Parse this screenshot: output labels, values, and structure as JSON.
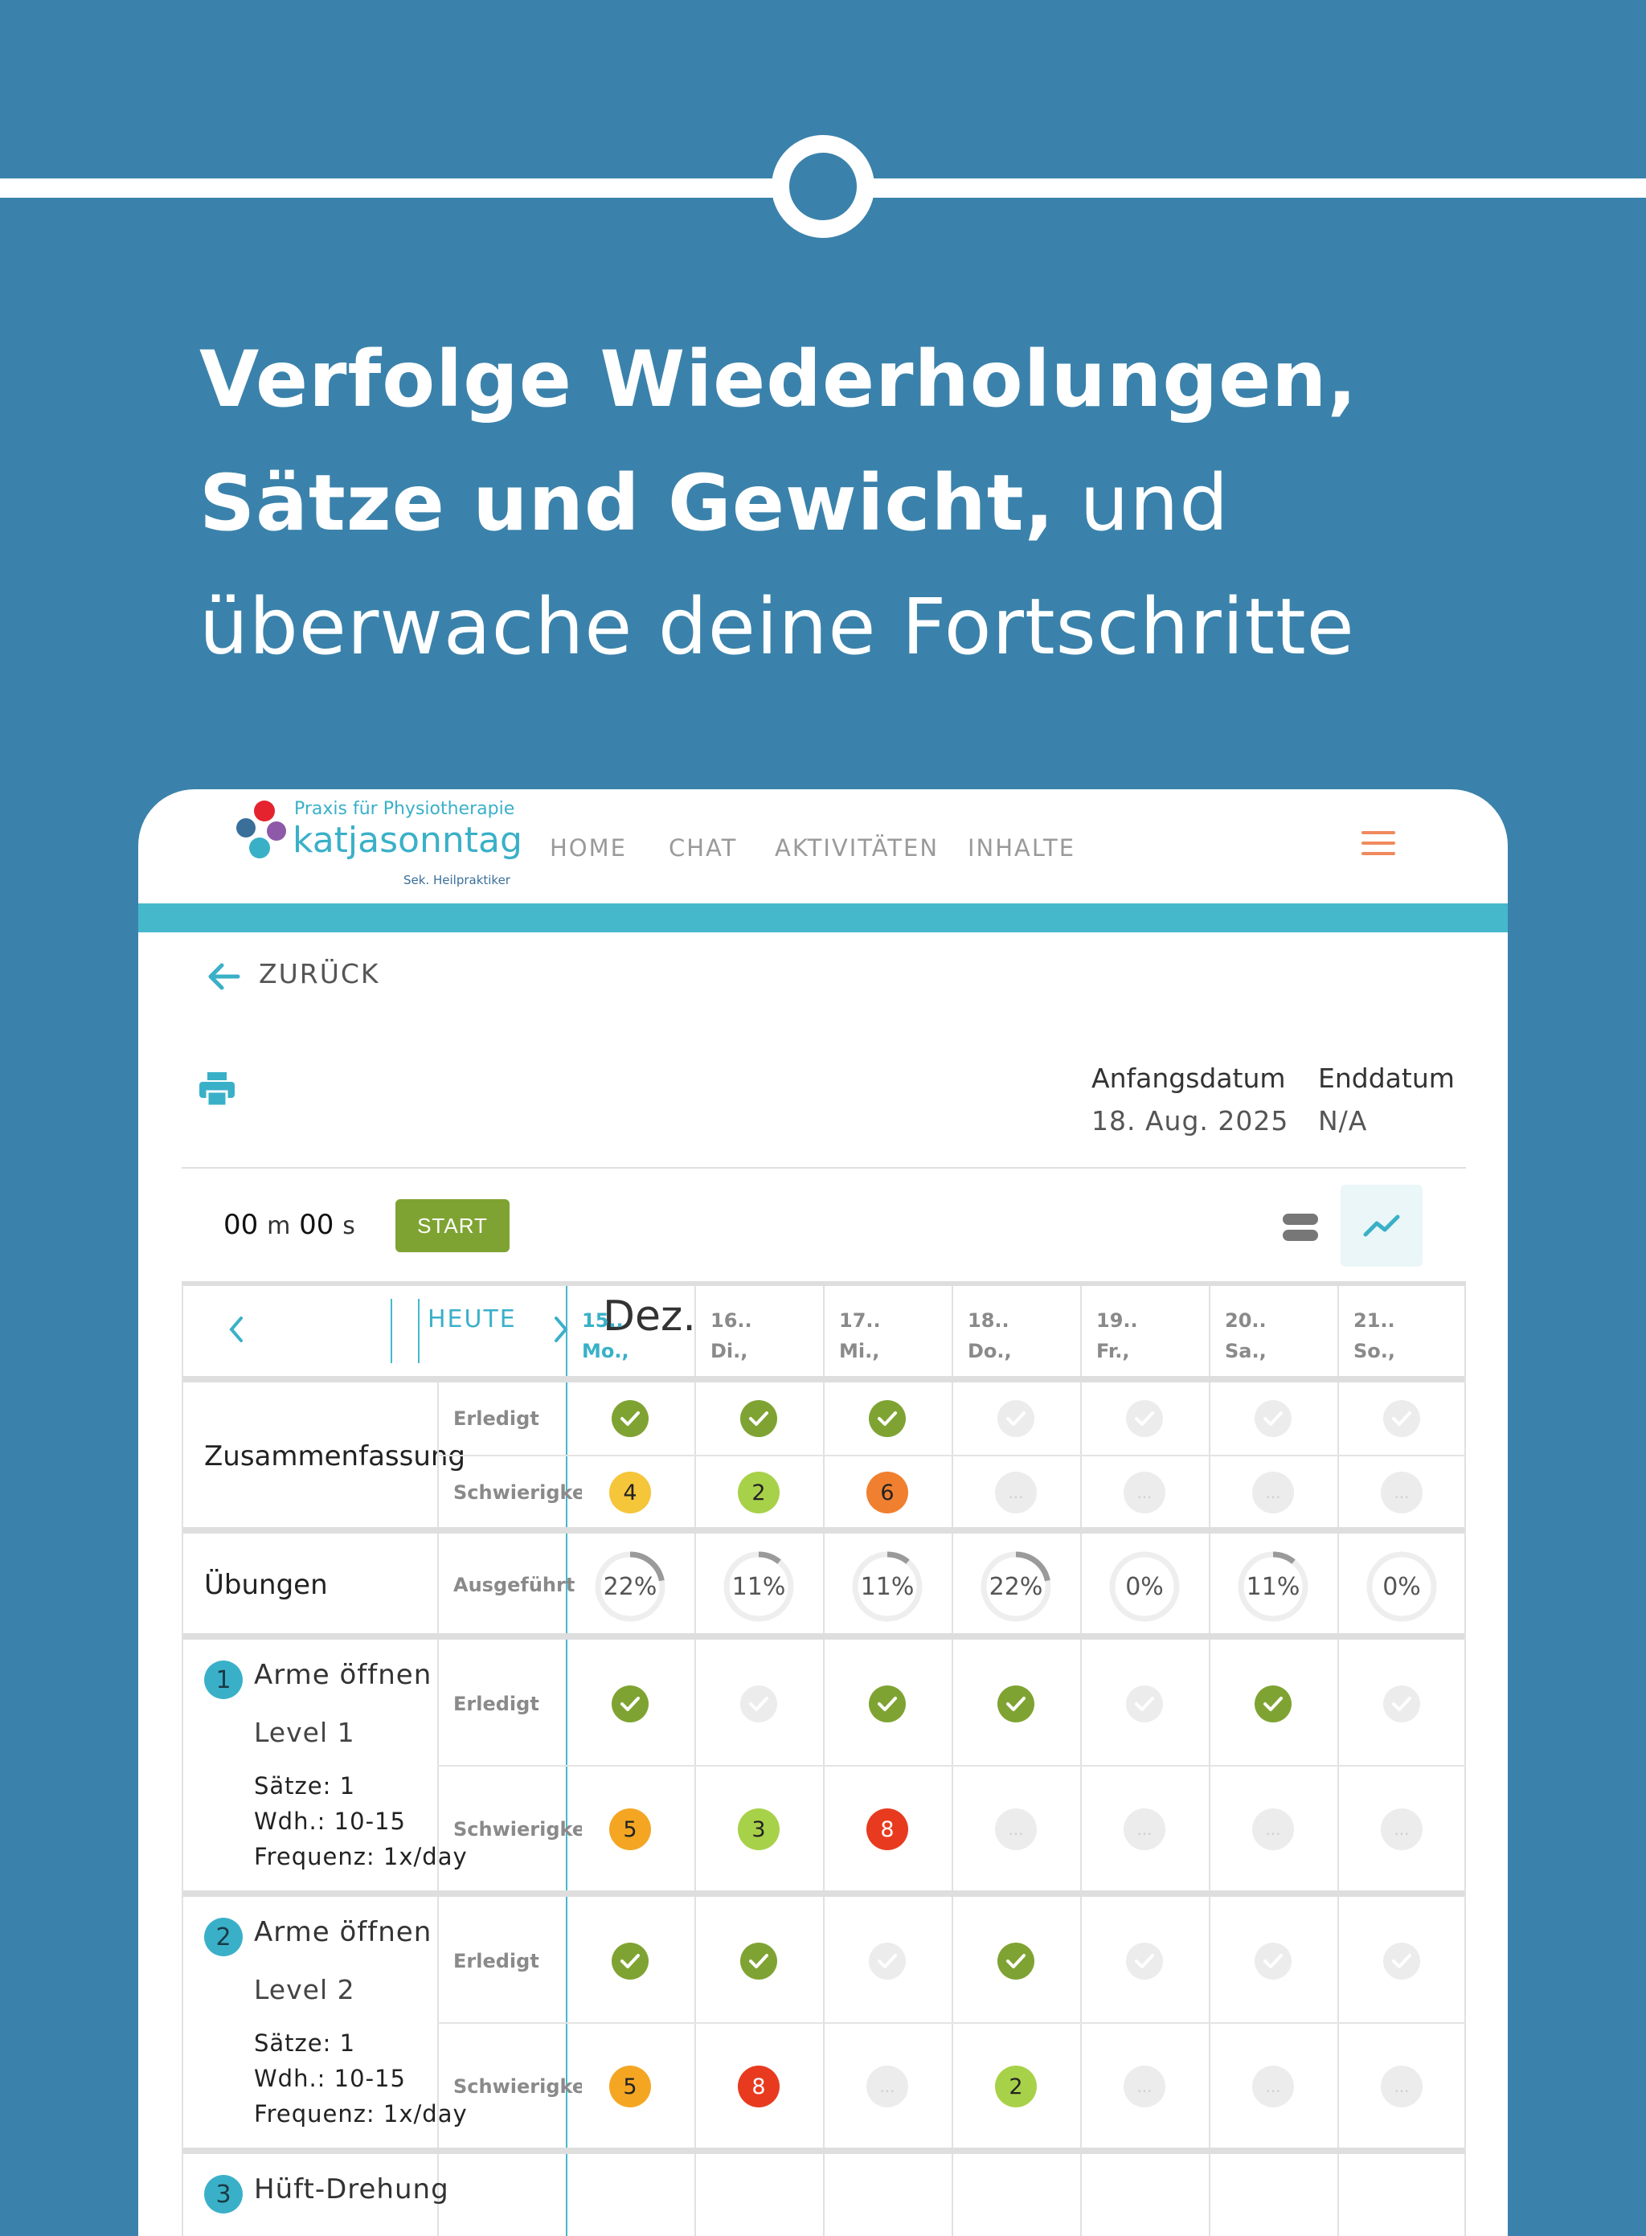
{
  "hero": {
    "line1_bold": "Verfolge Wiederholungen,",
    "line2_bold": "Sätze und Gewicht,",
    "line2_rest": " und",
    "line3": "überwache deine Fortschritte"
  },
  "brand": {
    "subtitle": "Praxis für Physiotherapie",
    "name": "katjasonntag",
    "tagline": "Sek. Heilpraktiker"
  },
  "nav": {
    "home": "HOME",
    "chat": "CHAT",
    "activities": "AKTIVITÄTEN",
    "content": "INHALTE"
  },
  "back_label": "ZURÜCK",
  "dates": {
    "start_label": "Anfangsdatum",
    "start_value": "18. Aug. 2025",
    "end_label": "Enddatum",
    "end_value": "N/A"
  },
  "timer": {
    "minutes": "00",
    "min_unit": "m",
    "seconds": "00",
    "sec_unit": "s",
    "start_label": "START"
  },
  "calendar": {
    "today_label": "HEUTE",
    "month": "Dez.",
    "days": [
      {
        "date": "15..",
        "weekday": "Mo.,"
      },
      {
        "date": "16..",
        "weekday": "Di.,"
      },
      {
        "date": "17..",
        "weekday": "Mi.,"
      },
      {
        "date": "18..",
        "weekday": "Do.,"
      },
      {
        "date": "19..",
        "weekday": "Fr.,"
      },
      {
        "date": "20..",
        "weekday": "Sa.,"
      },
      {
        "date": "21..",
        "weekday": "So.,"
      }
    ]
  },
  "labels": {
    "done": "Erledigt",
    "difficulty": "Schwierigkeit",
    "executed": "Ausgeführt",
    "empty_marker": "..."
  },
  "summary": {
    "title": "Zusammenfassung",
    "done": [
      true,
      true,
      true,
      false,
      false,
      false,
      false
    ],
    "difficulty": [
      4,
      2,
      6,
      null,
      null,
      null,
      null
    ]
  },
  "exercises_overview": {
    "title": "Übungen",
    "percent_labels": [
      "22%",
      "11%",
      "11%",
      "22%",
      "0%",
      "11%",
      "0%"
    ],
    "percent_values": [
      22,
      11,
      11,
      22,
      0,
      11,
      0
    ]
  },
  "exercises": [
    {
      "number": "1",
      "name": "Arme öffnen",
      "level": "Level 1",
      "sets": "Sätze: 1",
      "reps": "Wdh.: 10-15",
      "freq": "Frequenz: 1x/day",
      "done": [
        true,
        false,
        true,
        true,
        false,
        true,
        false
      ],
      "difficulty": [
        5,
        3,
        8,
        null,
        null,
        null,
        null
      ]
    },
    {
      "number": "2",
      "name": "Arme öffnen",
      "level": "Level 2",
      "sets": "Sätze: 1",
      "reps": "Wdh.: 10-15",
      "freq": "Frequenz: 1x/day",
      "done": [
        true,
        true,
        false,
        true,
        false,
        false,
        false
      ],
      "difficulty": [
        5,
        8,
        null,
        2,
        null,
        null,
        null
      ]
    },
    {
      "number": "3",
      "name": "Hüft-Drehung"
    }
  ],
  "colors": {
    "background": "#3a82ab",
    "accent": "#3ab0c8",
    "done_green": "#7fa332",
    "diff_2": "#a8d14a",
    "diff_3": "#a8d14a",
    "diff_4": "#f5c53a",
    "diff_5": "#f4a623",
    "diff_6": "#f08030",
    "diff_8": "#e83a1f",
    "menu_orange": "#f08a5d"
  }
}
